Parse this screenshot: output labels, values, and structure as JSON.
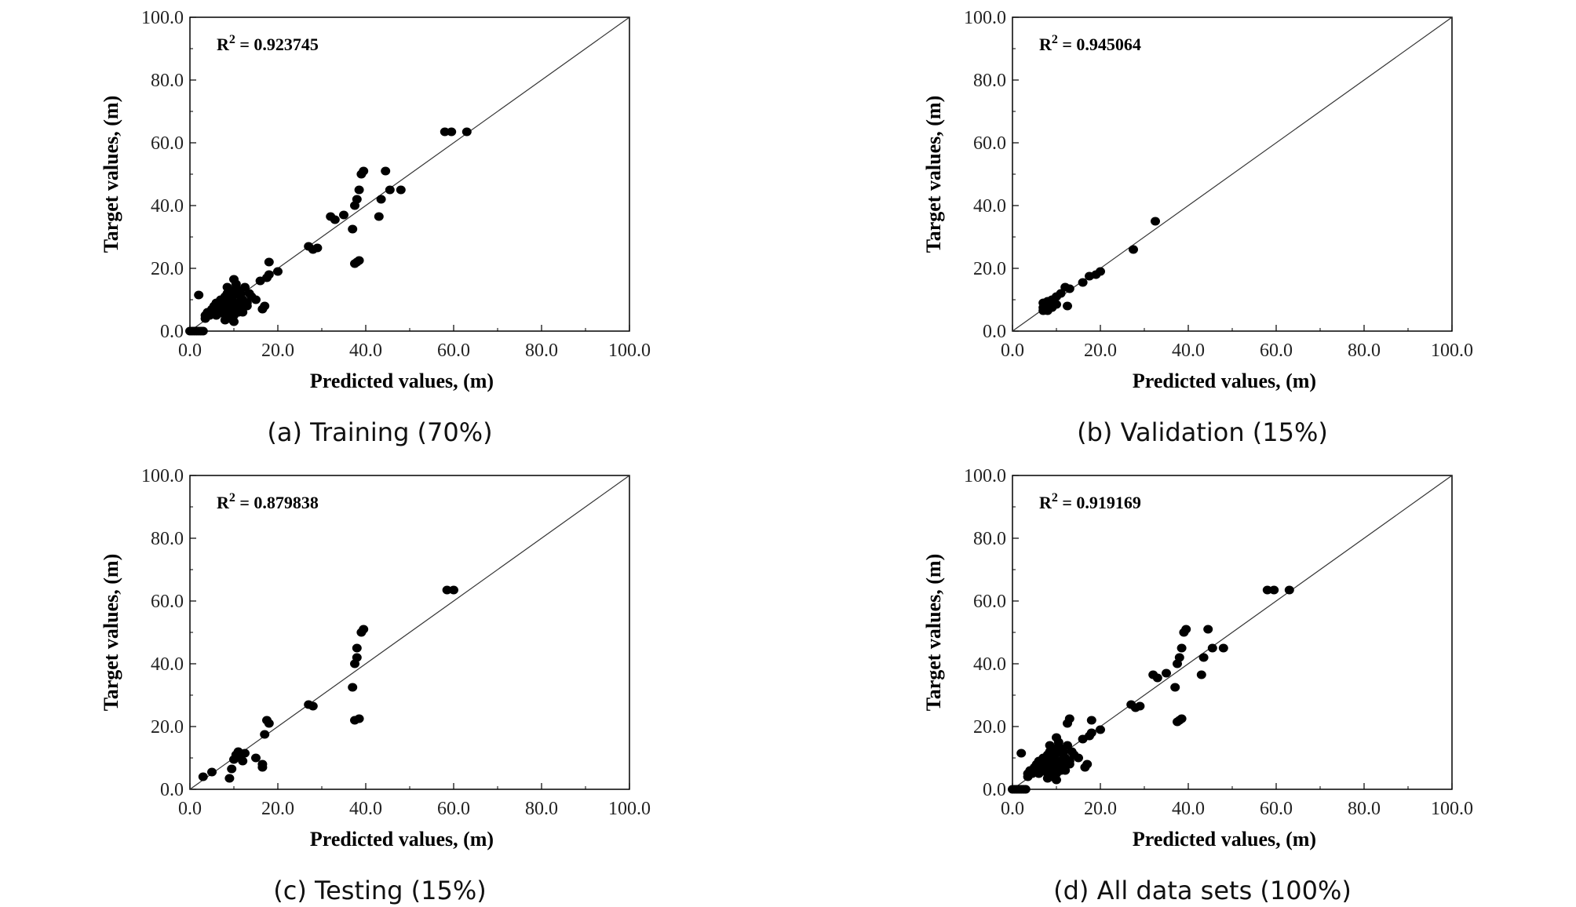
{
  "chart_data": [
    {
      "type": "scatter",
      "xlabel": "Predicted values, (m)",
      "ylabel": "Target values, (m)",
      "xlim": [
        0,
        100
      ],
      "ylim": [
        0,
        100
      ],
      "ticks": [
        "0.0",
        "20.0",
        "40.0",
        "60.0",
        "80.0",
        "100.0"
      ],
      "annotation": {
        "prefix": "R",
        "superscript": "2",
        "text": " = 0.923745"
      },
      "caption": "(a) Training (70%)",
      "reference_line": "y = x",
      "series": [
        {
          "x": [
            0,
            0.5,
            1,
            1.5,
            2,
            2.5,
            3,
            2,
            3.5,
            4,
            5,
            5.5,
            6,
            6.5,
            7,
            7.5,
            8,
            8.5,
            9,
            9.5,
            10,
            10.5,
            11,
            11.5,
            12,
            12.5,
            13,
            13.5,
            14,
            15,
            3.5,
            4.5,
            5,
            6,
            7,
            8,
            9,
            10,
            11,
            12,
            13,
            7,
            8,
            9,
            10,
            11,
            12,
            8,
            9,
            10,
            11,
            8.5,
            9.5,
            10.5,
            11.5,
            12.5,
            8,
            9,
            10,
            11,
            12,
            10,
            16,
            16.5,
            17,
            17.5,
            18,
            18,
            20,
            27,
            28,
            29,
            32,
            33,
            35,
            37,
            37.5,
            38,
            38.5,
            37.5,
            38,
            38.5,
            39,
            39.5,
            43,
            43.5,
            44.5,
            45.5,
            48,
            58,
            59.5,
            63
          ],
          "y": [
            0,
            0,
            0,
            0,
            0,
            0,
            0,
            11.5,
            5,
            6,
            7,
            8,
            9,
            7.5,
            8.5,
            10,
            11,
            12,
            9.5,
            10.5,
            11.5,
            12.5,
            13,
            11,
            10,
            9,
            8,
            12,
            11,
            10,
            4,
            5,
            6,
            5,
            6,
            7,
            7,
            8,
            9,
            8,
            9,
            10,
            9,
            8,
            7,
            6,
            6,
            5,
            4,
            5,
            7,
            14,
            13,
            15,
            12,
            14,
            3.5,
            4.5,
            3,
            6,
            8,
            16.5,
            16,
            7,
            8,
            17,
            18,
            22,
            19,
            27,
            26,
            26.5,
            36.5,
            35.5,
            37,
            32.5,
            21.5,
            22,
            22.5,
            40,
            42,
            45,
            50,
            51,
            36.5,
            42,
            51,
            45,
            45,
            63.5,
            63.5,
            63.5
          ]
        }
      ]
    },
    {
      "type": "scatter",
      "xlabel": "Predicted values, (m)",
      "ylabel": "Target values, (m)",
      "xlim": [
        0,
        100
      ],
      "ylim": [
        0,
        100
      ],
      "ticks": [
        "0.0",
        "20.0",
        "40.0",
        "60.0",
        "80.0",
        "100.0"
      ],
      "annotation": {
        "prefix": "R",
        "superscript": "2",
        "text": " = 0.945064"
      },
      "caption": "(b) Validation (15%)",
      "reference_line": "y = x",
      "series": [
        {
          "x": [
            7,
            7.5,
            8,
            7,
            8,
            9,
            10,
            11,
            12,
            9,
            10,
            7,
            8,
            12.5,
            13,
            16,
            17.5,
            19,
            20,
            27.5,
            32.5
          ],
          "y": [
            6.5,
            7,
            8,
            9,
            9.5,
            10,
            11,
            12,
            14,
            7.5,
            8.5,
            7.5,
            6.5,
            8,
            13.5,
            15.5,
            17.5,
            18,
            19,
            26,
            35
          ]
        }
      ]
    },
    {
      "type": "scatter",
      "xlabel": "Predicted values, (m)",
      "ylabel": "Target values, (m)",
      "xlim": [
        0,
        100
      ],
      "ylim": [
        0,
        100
      ],
      "ticks": [
        "0.0",
        "20.0",
        "40.0",
        "60.0",
        "80.0",
        "100.0"
      ],
      "annotation": {
        "prefix": "R",
        "superscript": "2",
        "text": " = 0.879838"
      },
      "caption": "(c) Testing (15%)",
      "reference_line": "y = x",
      "series": [
        {
          "x": [
            3,
            5,
            9,
            9.5,
            10,
            10.5,
            11,
            11.5,
            12,
            12.5,
            15,
            16.5,
            16.5,
            17,
            17.5,
            18,
            27,
            28,
            37,
            37.5,
            37.5,
            38,
            38,
            38.5,
            39,
            39.5,
            58.5,
            60
          ],
          "y": [
            4,
            5.5,
            3.5,
            6.5,
            9.5,
            11,
            12,
            10.5,
            9,
            11.5,
            10,
            8,
            7,
            17.5,
            22,
            21,
            27,
            26.5,
            32.5,
            22,
            40,
            42,
            45,
            22.5,
            50,
            51,
            63.5,
            63.5
          ]
        }
      ]
    },
    {
      "type": "scatter",
      "xlabel": "Predicted values, (m)",
      "ylabel": "Target values, (m)",
      "xlim": [
        0,
        100
      ],
      "ylim": [
        0,
        100
      ],
      "ticks": [
        "0.0",
        "20.0",
        "40.0",
        "60.0",
        "80.0",
        "100.0"
      ],
      "annotation": {
        "prefix": "R",
        "superscript": "2",
        "text": " = 0.919169"
      },
      "caption": "(d) All data sets (100%)",
      "reference_line": "y = x",
      "series": [
        {
          "x": [
            0,
            0.5,
            1,
            1.5,
            2,
            2.5,
            3,
            2,
            3.5,
            4,
            5,
            5.5,
            6,
            6.5,
            7,
            7.5,
            8,
            8.5,
            9,
            9.5,
            10,
            10.5,
            11,
            11.5,
            12,
            12.5,
            13,
            13.5,
            14,
            15,
            3.5,
            4.5,
            5,
            6,
            7,
            8,
            9,
            10,
            11,
            12,
            13,
            7,
            8,
            9,
            10,
            11,
            12,
            8,
            9,
            10,
            11,
            8.5,
            9.5,
            10.5,
            11.5,
            12.5,
            8,
            9,
            10,
            11,
            12,
            10,
            12.5,
            13,
            16,
            16.5,
            17,
            17.5,
            18,
            18,
            20,
            27,
            28,
            29,
            32,
            33,
            35,
            37,
            37.5,
            38,
            38.5,
            37.5,
            38,
            38.5,
            39,
            39.5,
            43,
            43.5,
            44.5,
            45.5,
            48,
            58,
            59.5,
            63
          ],
          "y": [
            0,
            0,
            0,
            0,
            0,
            0,
            0,
            11.5,
            5,
            6,
            7,
            8,
            9,
            7.5,
            8.5,
            10,
            11,
            12,
            9.5,
            10.5,
            11.5,
            12.5,
            13,
            11,
            10,
            9,
            8,
            12,
            11,
            10,
            4,
            5,
            6,
            5,
            6,
            7,
            7,
            8,
            9,
            8,
            9,
            10,
            9,
            8,
            7,
            6,
            6,
            5,
            4,
            5,
            7,
            14,
            13,
            15,
            12,
            14,
            3.5,
            4.5,
            3,
            6,
            8,
            16.5,
            21,
            22.5,
            16,
            7,
            8,
            17,
            18,
            22,
            19,
            27,
            26,
            26.5,
            36.5,
            35.5,
            37,
            32.5,
            21.5,
            22,
            22.5,
            40,
            42,
            45,
            50,
            51,
            36.5,
            42,
            51,
            45,
            45,
            63.5,
            63.5,
            63.5
          ]
        }
      ]
    }
  ]
}
